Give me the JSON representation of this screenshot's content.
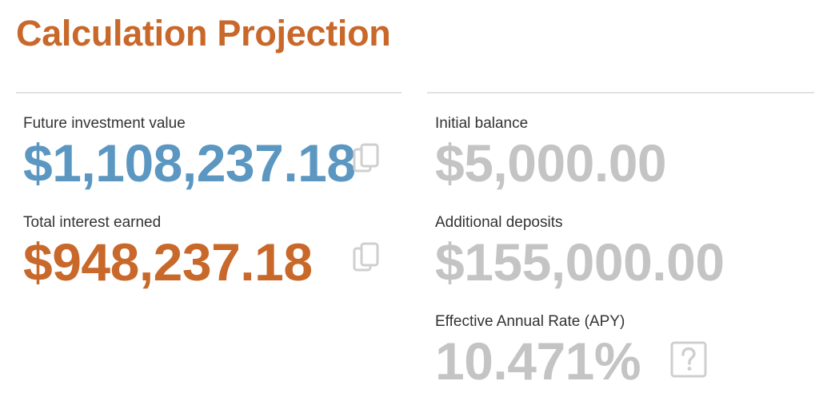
{
  "header": {
    "title": "Calculation Projection"
  },
  "results": {
    "future_value": {
      "label": "Future investment value",
      "value": "$1,108,237.18"
    },
    "total_interest": {
      "label": "Total interest earned",
      "value": "$948,237.18"
    },
    "initial_balance": {
      "label": "Initial balance",
      "value": "$5,000.00"
    },
    "additional_deposits": {
      "label": "Additional deposits",
      "value": "$155,000.00"
    },
    "apy": {
      "label": "Effective Annual Rate (APY)",
      "value": "10.471%"
    }
  },
  "icons": {
    "copy": "copy-icon",
    "help": "help-icon"
  },
  "colors": {
    "accent_orange": "#c8682a",
    "accent_blue": "#5b97c1",
    "muted_value": "#c4c4c4",
    "divider": "#e2e2e2",
    "icon": "#cfcfcf"
  }
}
